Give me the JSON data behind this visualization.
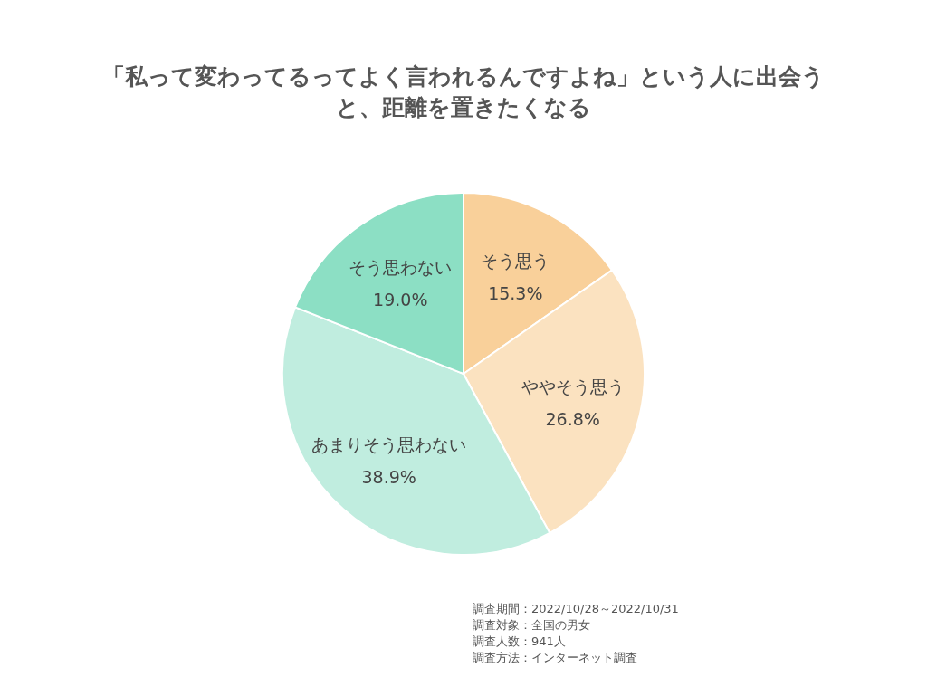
{
  "chart_data": {
    "type": "pie",
    "title": "「私って変わってるってよく言われるんですよね」という人に出会うと、距離を置きたくなる",
    "categories": [
      "そう思う",
      "ややそう思う",
      "あまりそう思わない",
      "そう思わない"
    ],
    "values": [
      15.3,
      26.8,
      38.9,
      19.0
    ],
    "value_labels": [
      "15.3%",
      "26.8%",
      "38.9%",
      "19.0%"
    ],
    "colors": [
      "#f9d09a",
      "#fbe2c0",
      "#c0eddf",
      "#8cdfc4"
    ],
    "annotations": [
      "調査期間：2022/10/28～2022/10/31",
      "調査対象：全国の男女",
      "調査人数：941人",
      "調査方法：インターネット調査"
    ]
  }
}
